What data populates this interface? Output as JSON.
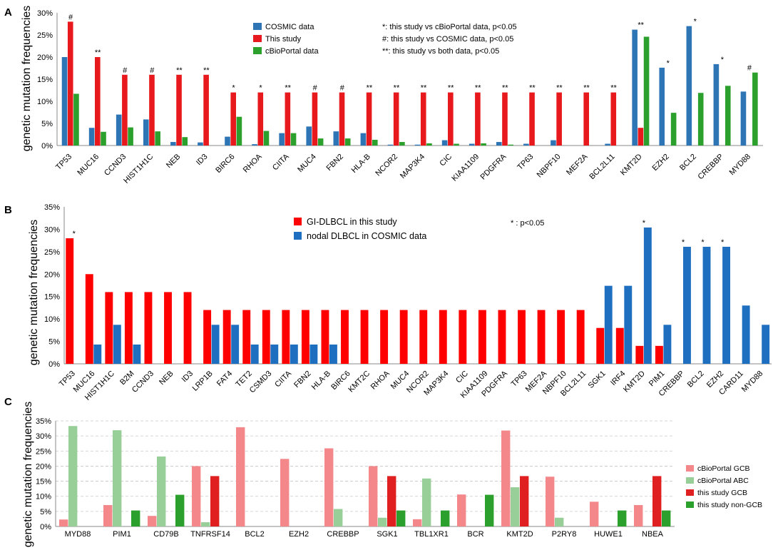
{
  "chart_data": [
    {
      "panel": "A",
      "type": "bar",
      "ylabel": "genetic mutation frequencies",
      "ylim": [
        0,
        30
      ],
      "yticks": [
        "0%",
        "5%",
        "10%",
        "15%",
        "20%",
        "25%",
        "30%"
      ],
      "categories": [
        "TP53",
        "MUC16",
        "CCND3",
        "HIST1H1C",
        "NEB",
        "ID3",
        "BIRC6",
        "RHOA",
        "CIITA",
        "MUC4",
        "FBN2",
        "HLA-B",
        "NCOR2",
        "MAP3K4",
        "CIC",
        "KIAA1109",
        "PDGFRA",
        "TP63",
        "NBPF10",
        "MEF2A",
        "BCL2L11",
        "KMT2D",
        "EZH2",
        "BCL2",
        "CREBBP",
        "MYD88"
      ],
      "series": [
        {
          "name": "COSMIC data",
          "color": "#2e75b6",
          "values": [
            20,
            4,
            7,
            5.9,
            0.8,
            0.7,
            2,
            0.3,
            2.8,
            4.3,
            3.2,
            2.8,
            0.2,
            0.2,
            1.2,
            0.4,
            0.8,
            0.4,
            1.2,
            0,
            0.4,
            26.2,
            17.6,
            27,
            18.4,
            12.2
          ]
        },
        {
          "name": "This study",
          "color": "#e8191c",
          "values": [
            28,
            20,
            16,
            16,
            16,
            16,
            12,
            12,
            12,
            12,
            12,
            12,
            12,
            12,
            12,
            12,
            12,
            12,
            12,
            12,
            12,
            4,
            0,
            0,
            0,
            0
          ]
        },
        {
          "name": "cBioPortal data",
          "color": "#2ca02c",
          "values": [
            11.7,
            3.1,
            4.1,
            3.2,
            1.9,
            0,
            6.5,
            3.3,
            2.8,
            1.6,
            1.6,
            1.3,
            0.8,
            0.5,
            0.4,
            0.5,
            0.2,
            0,
            0,
            0,
            0,
            24.6,
            7.4,
            11.9,
            13.5,
            16.5
          ]
        }
      ],
      "annotations": [
        "#",
        "**",
        "#",
        "#",
        "**",
        "**",
        "*",
        "*",
        "**",
        "#",
        "#",
        "**",
        "**",
        "**",
        "**",
        "**",
        "**",
        "**",
        "**",
        "**",
        "**",
        "**",
        "*",
        "*",
        "*",
        "#"
      ],
      "notes": [
        "*: this study vs cBioPortal data, p<0.05",
        "#: this study vs COSMIC data, p<0.05",
        "**: this study vs both data, p<0.05"
      ],
      "legend_position": "top-center"
    },
    {
      "panel": "B",
      "type": "bar",
      "ylabel": "genetic mutation frequencies",
      "ylim": [
        0,
        35
      ],
      "yticks": [
        "0%",
        "5%",
        "10%",
        "15%",
        "20%",
        "25%",
        "30%",
        "35%"
      ],
      "categories": [
        "TP53",
        "MUC16",
        "HIST1H1C",
        "B2M",
        "CCND3",
        "NEB",
        "ID3",
        "LRP1B",
        "FAT4",
        "TET2",
        "CSMD3",
        "CIITA",
        "FBN2",
        "HLA-B",
        "BIRC6",
        "KMT2C",
        "RHOA",
        "MUC4",
        "NCOR2",
        "MAP3K4",
        "CIC",
        "KIAA1109",
        "PDGFRA",
        "TP63",
        "MEF2A",
        "NBPF10",
        "BCL2L11",
        "SGK1",
        "IRF4",
        "KMT2D",
        "PIM1",
        "CREBBP",
        "BCL2",
        "EZH2",
        "CARD11",
        "MYD88"
      ],
      "series": [
        {
          "name": "GI-DLBCL in this study",
          "color": "#ff0000",
          "values": [
            28,
            20,
            16,
            16,
            16,
            16,
            16,
            12,
            12,
            12,
            12,
            12,
            12,
            12,
            12,
            12,
            12,
            12,
            12,
            12,
            12,
            12,
            12,
            12,
            12,
            12,
            12,
            8,
            8,
            4,
            4,
            0,
            0,
            0,
            0,
            0
          ]
        },
        {
          "name": "nodal DLBCL in COSMIC data",
          "color": "#1f6fc0",
          "values": [
            0,
            4.3,
            8.7,
            4.3,
            0,
            0,
            0,
            8.7,
            8.7,
            4.3,
            4.3,
            4.3,
            4.3,
            4.3,
            0,
            0,
            0,
            0,
            0,
            0,
            0,
            0,
            0,
            0,
            0,
            0,
            0,
            17.4,
            17.4,
            30.4,
            8.7,
            26.1,
            26.1,
            26.1,
            13,
            8.7
          ]
        }
      ],
      "annotations": [
        "*",
        "",
        "",
        "",
        "",
        "",
        "",
        "",
        "",
        "",
        "",
        "",
        "",
        "",
        "",
        "",
        "",
        "",
        "",
        "",
        "",
        "",
        "",
        "",
        "",
        "",
        "",
        "",
        "",
        "*",
        "",
        "*",
        "*",
        "*",
        "",
        ""
      ],
      "notes": [
        "* :  p<0.05"
      ],
      "legend_position": "top-center"
    },
    {
      "panel": "C",
      "type": "bar",
      "ylabel": "genetic mutation frequencies",
      "ylim": [
        0,
        35
      ],
      "yticks": [
        "0%",
        "5%",
        "10%",
        "15%",
        "20%",
        "25%",
        "30%",
        "35%"
      ],
      "categories": [
        "MYD88",
        "PIM1",
        "CD79B",
        "TNFRSF14",
        "BCL2",
        "EZH2",
        "CREBBP",
        "SGK1",
        "TBL1XR1",
        "BCR",
        "KMT2D",
        "P2RY8",
        "HUWE1",
        "NBEA"
      ],
      "series": [
        {
          "name": "cBioPortal GCB",
          "color": "#f4878a",
          "values": [
            2.3,
            7.1,
            3.5,
            20,
            32.9,
            22.4,
            25.9,
            20,
            2.4,
            10.6,
            31.8,
            16.5,
            8.2,
            7.1
          ]
        },
        {
          "name": "cBioPortal ABC",
          "color": "#98cf98",
          "values": [
            33.3,
            31.9,
            23.2,
            1.4,
            0,
            0,
            5.8,
            2.9,
            15.9,
            0,
            13,
            2.9,
            0,
            0
          ]
        },
        {
          "name": "this study GCB",
          "color": "#e02020",
          "values": [
            0,
            0,
            0,
            16.7,
            0,
            0,
            0,
            16.7,
            0,
            0,
            16.7,
            0,
            0,
            16.7
          ]
        },
        {
          "name": "this study non-GCB",
          "color": "#2ca02c",
          "values": [
            0,
            5.3,
            10.5,
            0,
            0,
            0,
            0,
            5.3,
            5.3,
            10.5,
            0,
            0,
            5.3,
            5.3
          ]
        }
      ],
      "legend_position": "right"
    }
  ]
}
